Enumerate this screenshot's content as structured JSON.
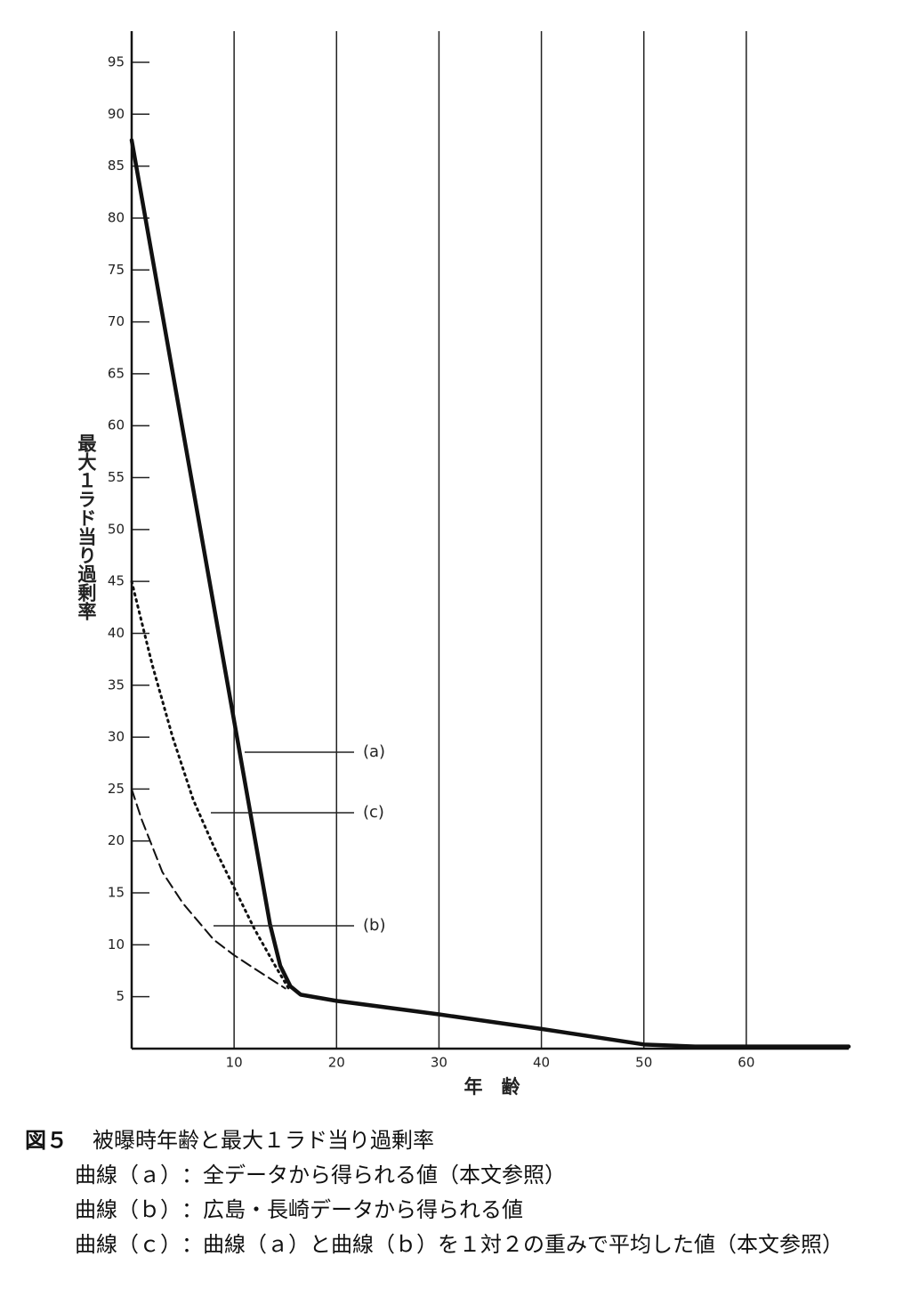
{
  "chart_data": {
    "type": "line",
    "x_label": "年　齢",
    "y_label": "最大１ラド当り過剰率",
    "xlim": [
      0,
      70
    ],
    "xticks": [
      10,
      20,
      30,
      40,
      50,
      60
    ],
    "ylim": [
      0,
      98
    ],
    "yticks": [
      5,
      10,
      15,
      20,
      25,
      30,
      35,
      40,
      45,
      50,
      55,
      60,
      65,
      70,
      75,
      80,
      85,
      90,
      95
    ],
    "grid": "x",
    "series": [
      {
        "name": "(a)",
        "color": "#111111",
        "style": "solid",
        "x": [
          0,
          13.5,
          14.5,
          15.5,
          16.5,
          20,
          30,
          40,
          50,
          55,
          70
        ],
        "values": [
          87.5,
          12,
          8,
          6,
          5.2,
          4.6,
          3.3,
          1.9,
          0.4,
          0.2,
          0.2
        ]
      },
      {
        "name": "(b)",
        "color": "#111111",
        "style": "dashed",
        "x": [
          0,
          1,
          3,
          5,
          8,
          10,
          12,
          15
        ],
        "values": [
          25,
          22,
          17,
          14,
          10.5,
          9,
          7.7,
          5.8
        ]
      },
      {
        "name": "(c)",
        "color": "#111111",
        "style": "dotted",
        "x": [
          0,
          2,
          4,
          6,
          8,
          10,
          12,
          14,
          15.5
        ],
        "values": [
          45,
          37,
          30,
          24,
          19.5,
          15.5,
          11.5,
          8,
          5.5
        ]
      }
    ]
  },
  "caption": {
    "figure": "図５",
    "title": "被曝時年齢と最大１ラド当り過剰率",
    "lines": [
      {
        "label": "曲線（ａ）",
        "text": "：全データから得られる値（本文参照）"
      },
      {
        "label": "曲線（ｂ）",
        "text": "：広島・長崎データから得られる値"
      },
      {
        "label": "曲線（ｃ）",
        "text": "：曲線（ａ）と曲線（ｂ）を１対２の重みで平均した値（本文参照）"
      }
    ]
  }
}
